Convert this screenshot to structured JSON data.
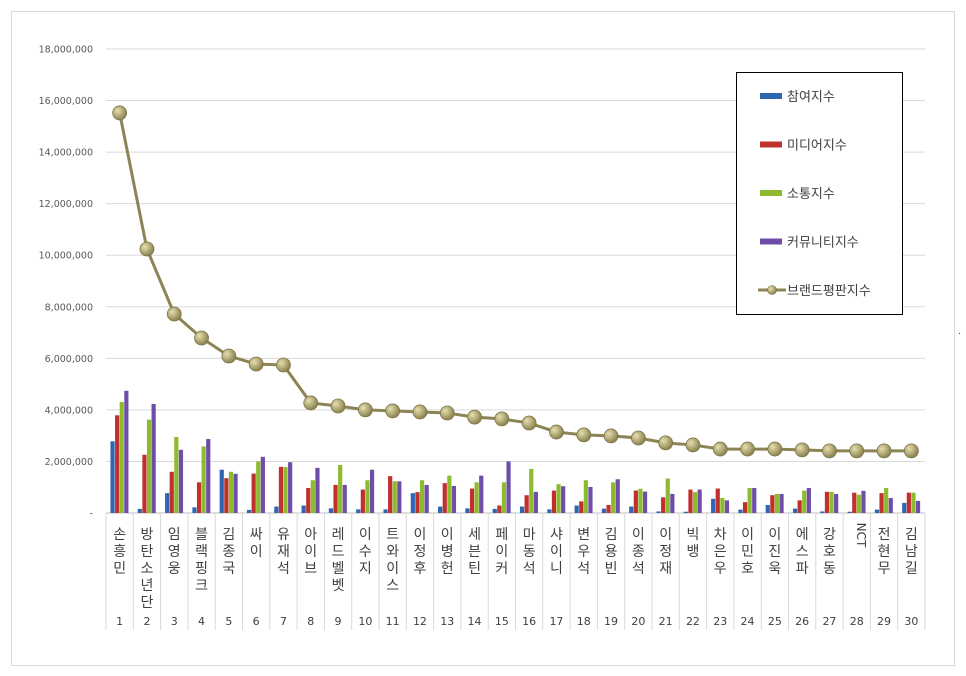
{
  "chart_data": {
    "type": "bar+line",
    "title": "",
    "xlabel": "",
    "ylabel": "",
    "ylim": [
      0,
      18000000
    ],
    "y_ticks": [
      "-",
      "2,000,000",
      "4,000,000",
      "6,000,000",
      "8,000,000",
      "10,000,000",
      "12,000,000",
      "14,000,000",
      "16,000,000",
      "18,000,000"
    ],
    "grid": true,
    "legend_position": "right",
    "ranks": [
      "1",
      "2",
      "3",
      "4",
      "5",
      "6",
      "7",
      "8",
      "9",
      "10",
      "11",
      "12",
      "13",
      "14",
      "15",
      "16",
      "17",
      "18",
      "19",
      "20",
      "21",
      "22",
      "23",
      "24",
      "25",
      "26",
      "27",
      "28",
      "29",
      "30"
    ],
    "categories": [
      "손흥민",
      "방탄소년단",
      "임영웅",
      "블랙핑크",
      "김종국",
      "싸이",
      "유재석",
      "아이브",
      "레드벨벳",
      "이수지",
      "트와이스",
      "이정후",
      "이병헌",
      "세븐틴",
      "페이커",
      "마동석",
      "샤이니",
      "변우석",
      "김용빈",
      "이종석",
      "이정재",
      "빅뱅",
      "차은우",
      "이민호",
      "이진욱",
      "에스파",
      "강호동",
      "NCT",
      "전현무",
      "김남길"
    ],
    "series": [
      {
        "name": "참여지수",
        "type": "bar",
        "color": "#2e66b4",
        "values": [
          2780000,
          160000,
          770000,
          220000,
          1680000,
          120000,
          250000,
          290000,
          180000,
          140000,
          140000,
          770000,
          250000,
          180000,
          160000,
          250000,
          140000,
          290000,
          170000,
          250000,
          60000,
          50000,
          550000,
          130000,
          310000,
          170000,
          60000,
          50000,
          130000,
          390000
        ]
      },
      {
        "name": "미디어지수",
        "type": "bar",
        "color": "#c0302c",
        "values": [
          3790000,
          2260000,
          1600000,
          1190000,
          1350000,
          1530000,
          1790000,
          970000,
          1090000,
          910000,
          1430000,
          810000,
          1160000,
          950000,
          290000,
          690000,
          870000,
          450000,
          310000,
          870000,
          610000,
          910000,
          950000,
          420000,
          690000,
          490000,
          820000,
          790000,
          770000,
          790000
        ]
      },
      {
        "name": "소통지수",
        "type": "bar",
        "color": "#8dbb2e",
        "values": [
          4310000,
          3620000,
          2950000,
          2580000,
          1600000,
          2000000,
          1780000,
          1270000,
          1860000,
          1270000,
          1230000,
          1270000,
          1450000,
          1190000,
          1190000,
          1710000,
          1120000,
          1270000,
          1190000,
          940000,
          1340000,
          810000,
          580000,
          970000,
          740000,
          870000,
          820000,
          710000,
          970000,
          790000
        ]
      },
      {
        "name": "커뮤니티지수",
        "type": "bar",
        "color": "#6e4ea8",
        "values": [
          4740000,
          4230000,
          2450000,
          2870000,
          1520000,
          2180000,
          1970000,
          1750000,
          1090000,
          1680000,
          1230000,
          1090000,
          1050000,
          1450000,
          2000000,
          820000,
          1040000,
          1010000,
          1310000,
          830000,
          740000,
          910000,
          490000,
          970000,
          740000,
          970000,
          740000,
          860000,
          580000,
          470000
        ]
      },
      {
        "name": "브랜드평판지수",
        "type": "line",
        "color": "#8c8454",
        "marker_color": "#b3a96a",
        "values": [
          15520000,
          10240000,
          7720000,
          6790000,
          6090000,
          5780000,
          5740000,
          4270000,
          4150000,
          4000000,
          3960000,
          3920000,
          3880000,
          3720000,
          3650000,
          3490000,
          3140000,
          3030000,
          2990000,
          2910000,
          2720000,
          2640000,
          2480000,
          2480000,
          2480000,
          2450000,
          2410000,
          2410000,
          2410000,
          2410000
        ]
      }
    ]
  }
}
